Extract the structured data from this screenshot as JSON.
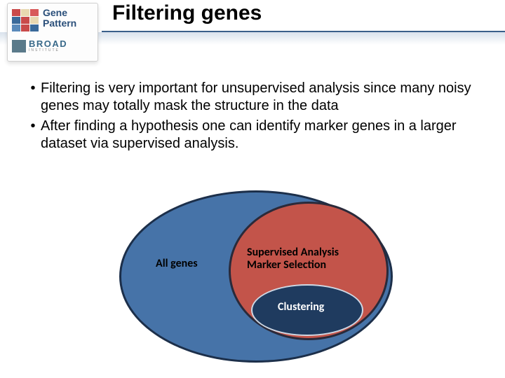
{
  "title": "Filtering genes",
  "logos": {
    "genepattern": {
      "line1": "Gene",
      "line2": "Pattern",
      "grid_colors": [
        "#c94a4a",
        "#e8d8b0",
        "#d85a5a",
        "#3a6a9a",
        "#c94a4a",
        "#e8d8b0",
        "#5a8aba",
        "#c94a4a",
        "#3a6a9a"
      ]
    },
    "broad": {
      "text": "BROAD",
      "sub": "INSTITUTE"
    }
  },
  "bullets": [
    "Filtering is very important for unsupervised analysis since many noisy genes may totally mask the structure in the data",
    "After finding a hypothesis one can identify marker genes in a larger dataset via supervised analysis."
  ],
  "bullet_fontsize": 20,
  "diagram": {
    "outer": {
      "label": "All genes",
      "fill": "#4673a8",
      "stroke": "#1c2f4a",
      "stroke_width": 3
    },
    "middle": {
      "label_line1": "Supervised Analysis",
      "label_line2": "Marker Selection",
      "fill": "#c3544a",
      "stroke": "#2a2a3a",
      "stroke_width": 3
    },
    "inner": {
      "label": "Clustering",
      "fill": "#1f3b5f",
      "stroke": "#cfd8e4",
      "stroke_width": 2
    },
    "label_fontsize": 16,
    "label_font": "Calibri"
  },
  "colors": {
    "title_underline": "#3a5f8a",
    "background": "#ffffff"
  }
}
